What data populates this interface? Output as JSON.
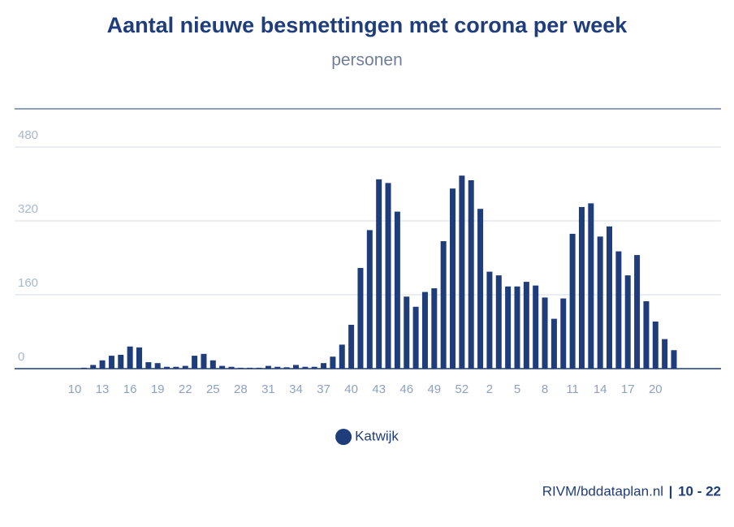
{
  "chart_data": {
    "type": "bar",
    "title": "Aantal nieuwe besmettingen met corona per week",
    "subtitle": "personen",
    "categories": [
      "10",
      null,
      null,
      "13",
      null,
      null,
      "16",
      null,
      null,
      "19",
      null,
      null,
      "22",
      null,
      null,
      "25",
      null,
      null,
      "28",
      null,
      null,
      "31",
      null,
      null,
      "34",
      null,
      null,
      "37",
      null,
      null,
      "40",
      null,
      null,
      "43",
      null,
      null,
      "46",
      null,
      null,
      "49",
      null,
      null,
      "52",
      null,
      null,
      "2",
      null,
      null,
      "5",
      null,
      null,
      "8",
      null,
      null,
      "11",
      null,
      null,
      "14",
      null,
      null,
      "17",
      null,
      null,
      "20",
      null,
      null
    ],
    "series": [
      {
        "name": "Katwijk",
        "color": "#1f3d7a",
        "values": [
          0,
          2,
          8,
          18,
          28,
          30,
          48,
          46,
          14,
          12,
          4,
          4,
          6,
          28,
          32,
          18,
          6,
          4,
          2,
          2,
          2,
          6,
          4,
          3,
          8,
          4,
          4,
          12,
          26,
          52,
          95,
          218,
          300,
          410,
          402,
          340,
          156,
          134,
          166,
          174,
          276,
          390,
          418,
          408,
          346,
          210,
          202,
          178,
          178,
          188,
          180,
          154,
          108,
          152,
          292,
          350,
          358,
          286,
          308,
          254,
          202,
          246,
          146,
          102,
          64,
          40
        ]
      }
    ],
    "ylim": [
      0,
      480
    ],
    "yticks": [
      0,
      160,
      320,
      480
    ],
    "grid": true,
    "legend": "bottom",
    "footer": {
      "source": "RIVM/bddataplan.nl",
      "separator": "|",
      "period": "10 - 22"
    }
  }
}
